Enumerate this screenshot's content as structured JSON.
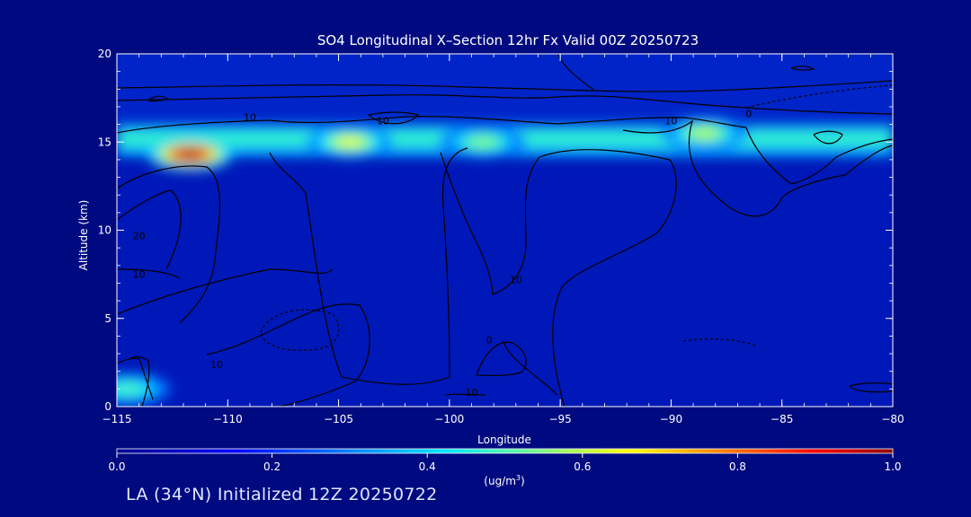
{
  "colors": {
    "background": "#000a80",
    "axis": "#ffffff",
    "contour": "#000000",
    "colormap": [
      "#00008b",
      "#0000ff",
      "#0080ff",
      "#00e5ff",
      "#80ff80",
      "#ffff00",
      "#ff8000",
      "#ff0000",
      "#8b0000"
    ]
  },
  "chart_data": {
    "type": "heatmap",
    "title": "SO4 Longitudinal X–Section 12hr  Fx Valid 00Z 20250723",
    "xlabel": "Longitude",
    "ylabel": "Altitude (km)",
    "xlim": [
      -115,
      -80
    ],
    "ylim": [
      0,
      20
    ],
    "xticks": [
      -115,
      -110,
      -105,
      -100,
      -95,
      -90,
      -85,
      -80
    ],
    "xtick_labels": [
      "−115",
      "−110",
      "−105",
      "−100",
      "−95",
      "−90",
      "−85",
      "−80"
    ],
    "yticks": [
      0,
      5,
      10,
      15,
      20
    ],
    "ytick_labels": [
      "0",
      "5",
      "10",
      "15",
      "20"
    ],
    "colorbar": {
      "min": 0.0,
      "max": 1.0,
      "ticks": [
        0.0,
        0.2,
        0.4,
        0.6,
        0.8,
        1.0
      ],
      "tick_labels": [
        "0.0",
        "0.2",
        "0.4",
        "0.6",
        "0.8",
        "1.0"
      ],
      "unit_label": "(ug/m",
      "unit_sup": "3",
      "unit_close": ")"
    },
    "features": [
      {
        "kind": "layer",
        "lon": [
          -115,
          -80
        ],
        "alt": [
          14.2,
          16.0
        ],
        "value": 0.3
      },
      {
        "kind": "blob",
        "lon": -111.7,
        "alt": 14.3,
        "value": 0.95
      },
      {
        "kind": "blob",
        "lon": -104.5,
        "alt": 15.0,
        "value": 0.6
      },
      {
        "kind": "blob",
        "lon": -88.5,
        "alt": 15.5,
        "value": 0.55
      },
      {
        "kind": "blob",
        "lon": -114.5,
        "alt": 1.0,
        "value": 0.45
      },
      {
        "kind": "blob",
        "lon": -98.5,
        "alt": 15.0,
        "value": 0.5
      }
    ],
    "contour_labels": [
      {
        "text": "10",
        "lon": -109.0,
        "alt": 16.2
      },
      {
        "text": "10",
        "lon": -103.0,
        "alt": 16.0
      },
      {
        "text": "10",
        "lon": -90.0,
        "alt": 16.0
      },
      {
        "text": "0",
        "lon": -86.5,
        "alt": 16.4
      },
      {
        "text": "20",
        "lon": -114.0,
        "alt": 9.5
      },
      {
        "text": "10",
        "lon": -114.0,
        "alt": 7.3
      },
      {
        "text": "10",
        "lon": -97.0,
        "alt": 7.0
      },
      {
        "text": "0",
        "lon": -98.2,
        "alt": 3.6
      },
      {
        "text": "10",
        "lon": -110.5,
        "alt": 2.2
      },
      {
        "text": "10",
        "lon": -99.0,
        "alt": 0.6
      }
    ]
  },
  "footer": {
    "text": "LA (34°N) Initialized 12Z 20250722"
  }
}
